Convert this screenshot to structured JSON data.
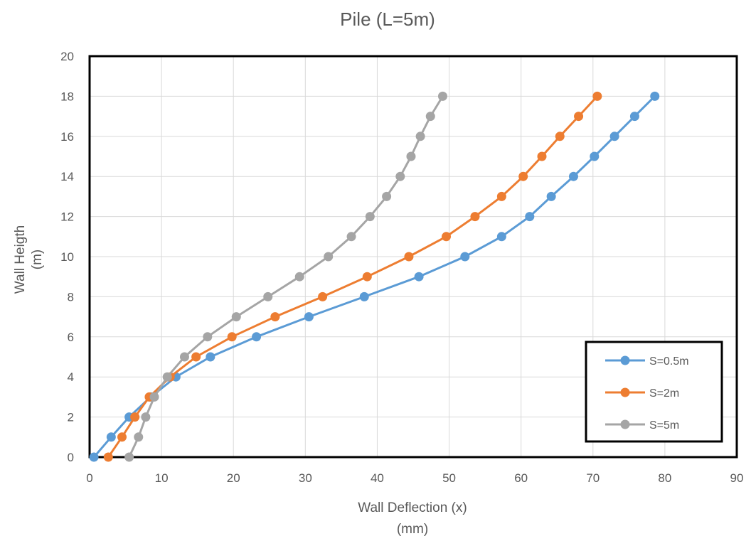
{
  "chart_data": {
    "type": "line",
    "title": "Pile (L=5m)",
    "xlabel": [
      "Wall Deflection (x)",
      "(mm)"
    ],
    "ylabel": [
      "Wall Heigth",
      "(m)"
    ],
    "xlim": [
      0,
      90
    ],
    "ylim": [
      0,
      20
    ],
    "xticks": [
      0,
      10,
      20,
      30,
      40,
      50,
      60,
      70,
      80,
      90
    ],
    "yticks": [
      0,
      2,
      4,
      6,
      8,
      10,
      12,
      14,
      16,
      18,
      20
    ],
    "grid": true,
    "legend_position": "bottom-right",
    "series": [
      {
        "name": "S=0.5m",
        "color": "#5b9bd5",
        "x": [
          0.6,
          3.0,
          5.5,
          8.5,
          12.0,
          16.8,
          23.2,
          30.5,
          38.2,
          45.8,
          52.2,
          57.3,
          61.2,
          64.2,
          67.3,
          70.2,
          73.0,
          75.8,
          78.6
        ],
        "y": [
          0,
          1,
          2,
          3,
          4,
          5,
          6,
          7,
          8,
          9,
          10,
          11,
          12,
          13,
          14,
          15,
          16,
          17,
          18
        ]
      },
      {
        "name": "S=2m",
        "color": "#ed7d31",
        "x": [
          2.6,
          4.5,
          6.3,
          8.3,
          11.2,
          14.8,
          19.8,
          25.8,
          32.4,
          38.6,
          44.4,
          49.6,
          53.6,
          57.3,
          60.3,
          62.9,
          65.4,
          68.0,
          70.6
        ],
        "y": [
          0,
          1,
          2,
          3,
          4,
          5,
          6,
          7,
          8,
          9,
          10,
          11,
          12,
          13,
          14,
          15,
          16,
          17,
          18
        ]
      },
      {
        "name": "S=5m",
        "color": "#a5a5a5",
        "x": [
          5.5,
          6.8,
          7.8,
          9.0,
          10.8,
          13.2,
          16.4,
          20.4,
          24.8,
          29.2,
          33.2,
          36.4,
          39.0,
          41.3,
          43.2,
          44.7,
          46.0,
          47.4,
          49.1
        ],
        "y": [
          0,
          1,
          2,
          3,
          4,
          5,
          6,
          7,
          8,
          9,
          10,
          11,
          12,
          13,
          14,
          15,
          16,
          17,
          18
        ]
      }
    ]
  }
}
